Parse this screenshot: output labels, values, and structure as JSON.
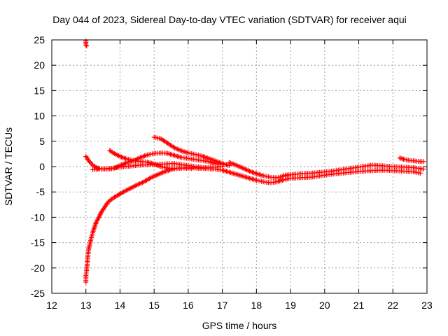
{
  "chart_data": {
    "type": "scatter",
    "title": "Day 044 of 2023, Sidereal Day-to-day VTEC variation (SDTVAR) for receiver aqui",
    "xlabel": "GPS time / hours",
    "ylabel": "SDTVAR / TECUs",
    "xlim": [
      12,
      23
    ],
    "ylim": [
      -25,
      25
    ],
    "xticks": [
      12,
      13,
      14,
      15,
      16,
      17,
      18,
      19,
      20,
      21,
      22,
      23
    ],
    "yticks": [
      -25,
      -20,
      -15,
      -10,
      -5,
      0,
      5,
      10,
      15,
      20,
      25
    ],
    "grid": true,
    "marker": "+",
    "color": "#ff0000",
    "series": [
      {
        "name": "arc-top-outlier",
        "points": [
          [
            13.0,
            24.8
          ],
          [
            13.0,
            24.0
          ],
          [
            13.02,
            23.8
          ]
        ]
      },
      {
        "name": "arc-rising",
        "points": [
          [
            13.0,
            -22.8
          ],
          [
            13.0,
            -21.5
          ],
          [
            13.02,
            -20.5
          ],
          [
            13.04,
            -19.0
          ],
          [
            13.06,
            -17.5
          ],
          [
            13.08,
            -16.3
          ],
          [
            13.12,
            -15.2
          ],
          [
            13.16,
            -14.0
          ],
          [
            13.2,
            -13.0
          ],
          [
            13.25,
            -12.0
          ],
          [
            13.3,
            -11.0
          ],
          [
            13.38,
            -10.0
          ],
          [
            13.45,
            -9.0
          ],
          [
            13.55,
            -8.0
          ],
          [
            13.65,
            -7.0
          ],
          [
            13.8,
            -6.2
          ],
          [
            13.95,
            -5.6
          ],
          [
            14.1,
            -5.0
          ],
          [
            14.3,
            -4.3
          ],
          [
            14.5,
            -3.6
          ],
          [
            14.7,
            -3.0
          ],
          [
            14.9,
            -2.2
          ],
          [
            15.1,
            -1.6
          ],
          [
            15.3,
            -1.0
          ],
          [
            15.5,
            -0.6
          ],
          [
            15.7,
            -0.3
          ],
          [
            15.9,
            -0.3
          ],
          [
            16.1,
            -0.4
          ]
        ]
      },
      {
        "name": "arc-a",
        "points": [
          [
            13.0,
            2.0
          ],
          [
            13.1,
            1.0
          ],
          [
            13.2,
            0.3
          ],
          [
            13.3,
            -0.2
          ],
          [
            13.4,
            -0.4
          ],
          [
            13.6,
            -0.5
          ],
          [
            13.8,
            -0.4
          ],
          [
            14.0,
            0.2
          ],
          [
            14.2,
            0.8
          ],
          [
            14.4,
            1.2
          ],
          [
            14.6,
            1.8
          ],
          [
            14.8,
            2.3
          ],
          [
            15.0,
            2.6
          ],
          [
            15.2,
            2.7
          ],
          [
            15.4,
            2.6
          ],
          [
            15.6,
            2.2
          ],
          [
            15.8,
            1.8
          ],
          [
            16.0,
            1.6
          ],
          [
            16.2,
            1.4
          ],
          [
            16.4,
            1.2
          ],
          [
            16.6,
            1.0
          ],
          [
            16.8,
            0.6
          ],
          [
            17.0,
            0.4
          ]
        ]
      },
      {
        "name": "arc-b",
        "points": [
          [
            13.7,
            3.2
          ],
          [
            13.8,
            2.7
          ],
          [
            14.0,
            2.0
          ],
          [
            14.2,
            1.5
          ],
          [
            14.4,
            1.2
          ],
          [
            14.6,
            1.0
          ],
          [
            14.8,
            0.9
          ],
          [
            15.0,
            0.5
          ],
          [
            15.2,
            0.0
          ],
          [
            15.4,
            -0.3
          ],
          [
            15.6,
            -0.4
          ],
          [
            15.8,
            -0.3
          ],
          [
            16.0,
            -0.2
          ],
          [
            16.2,
            -0.2
          ],
          [
            16.4,
            -0.3
          ]
        ]
      },
      {
        "name": "arc-c",
        "points": [
          [
            13.2,
            -0.6
          ],
          [
            13.4,
            -0.5
          ],
          [
            13.6,
            -0.4
          ],
          [
            13.8,
            -0.3
          ],
          [
            14.0,
            -0.1
          ],
          [
            14.3,
            0.1
          ],
          [
            14.6,
            0.3
          ],
          [
            15.0,
            0.4
          ],
          [
            15.3,
            0.5
          ],
          [
            15.6,
            0.6
          ],
          [
            15.9,
            0.3
          ],
          [
            16.2,
            0.0
          ],
          [
            16.5,
            -0.2
          ],
          [
            16.8,
            -0.1
          ],
          [
            17.0,
            0.0
          ]
        ]
      },
      {
        "name": "arc-d",
        "points": [
          [
            15.0,
            5.8
          ],
          [
            15.2,
            5.5
          ],
          [
            15.4,
            4.6
          ],
          [
            15.6,
            3.7
          ],
          [
            15.8,
            3.1
          ],
          [
            16.0,
            2.7
          ],
          [
            16.2,
            2.4
          ],
          [
            16.4,
            2.1
          ],
          [
            16.6,
            1.6
          ],
          [
            16.8,
            1.1
          ],
          [
            17.0,
            0.6
          ],
          [
            17.2,
            0.2
          ]
        ]
      },
      {
        "name": "arc-e",
        "points": [
          [
            17.2,
            0.8
          ],
          [
            17.4,
            0.3
          ],
          [
            17.6,
            -0.3
          ],
          [
            17.8,
            -0.9
          ],
          [
            18.0,
            -1.4
          ],
          [
            18.2,
            -1.8
          ],
          [
            18.4,
            -2.1
          ],
          [
            18.6,
            -2.2
          ],
          [
            18.8,
            -1.9
          ],
          [
            19.0,
            -1.6
          ]
        ]
      },
      {
        "name": "arc-f",
        "points": [
          [
            16.2,
            -0.3
          ],
          [
            16.5,
            -0.4
          ],
          [
            16.8,
            -0.5
          ],
          [
            17.0,
            -0.7
          ],
          [
            17.2,
            -1.1
          ],
          [
            17.4,
            -1.5
          ],
          [
            17.6,
            -1.9
          ],
          [
            17.8,
            -2.3
          ],
          [
            18.0,
            -2.7
          ],
          [
            18.2,
            -3.0
          ],
          [
            18.4,
            -3.2
          ],
          [
            18.6,
            -3.0
          ],
          [
            18.8,
            -2.6
          ],
          [
            19.0,
            -2.3
          ],
          [
            19.3,
            -2.2
          ],
          [
            19.6,
            -2.1
          ],
          [
            19.9,
            -1.8
          ],
          [
            20.2,
            -1.5
          ],
          [
            20.5,
            -1.3
          ],
          [
            20.8,
            -1.1
          ],
          [
            21.1,
            -0.9
          ],
          [
            21.4,
            -0.8
          ],
          [
            21.7,
            -0.7
          ],
          [
            22.0,
            -0.8
          ],
          [
            22.3,
            -0.9
          ],
          [
            22.6,
            -1.0
          ],
          [
            22.8,
            -1.3
          ]
        ]
      },
      {
        "name": "arc-g",
        "points": [
          [
            18.8,
            -1.7
          ],
          [
            19.0,
            -1.6
          ],
          [
            19.3,
            -1.4
          ],
          [
            19.6,
            -1.3
          ],
          [
            19.9,
            -1.1
          ],
          [
            20.2,
            -0.9
          ],
          [
            20.5,
            -0.6
          ],
          [
            20.8,
            -0.3
          ],
          [
            21.0,
            -0.1
          ],
          [
            21.2,
            0.1
          ],
          [
            21.4,
            0.3
          ],
          [
            21.6,
            0.2
          ],
          [
            21.8,
            0.1
          ],
          [
            22.0,
            0.0
          ],
          [
            22.3,
            -0.1
          ],
          [
            22.6,
            -0.2
          ],
          [
            22.9,
            -0.5
          ]
        ]
      },
      {
        "name": "arc-h",
        "points": [
          [
            22.2,
            1.7
          ],
          [
            22.35,
            1.4
          ],
          [
            22.5,
            1.2
          ],
          [
            22.65,
            1.1
          ],
          [
            22.8,
            1.0
          ],
          [
            22.9,
            1.0
          ]
        ]
      }
    ]
  }
}
